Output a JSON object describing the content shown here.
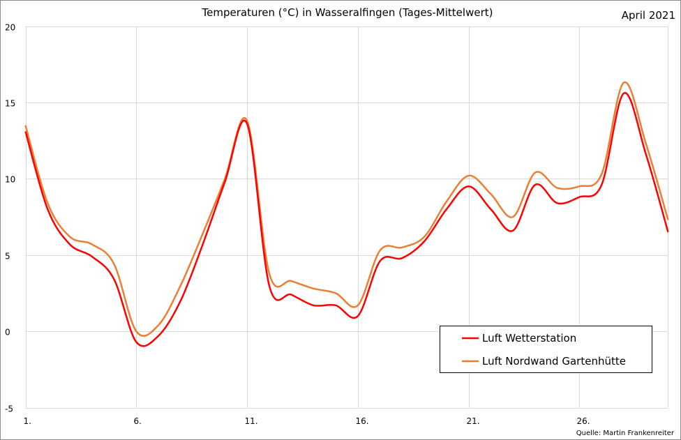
{
  "chart_data": {
    "type": "line",
    "title": "Temperaturen (°C) in Wasseralfingen (Tages-Mittelwert)",
    "subtitle": "April 2021",
    "source": "Quelle: Martin Frankenreiter",
    "xlabel": "",
    "ylabel": "",
    "x": [
      1,
      2,
      3,
      4,
      5,
      6,
      7,
      8,
      9,
      10,
      11,
      12,
      13,
      14,
      15,
      16,
      17,
      18,
      19,
      20,
      21,
      22,
      23,
      24,
      25,
      26,
      27,
      28,
      29,
      30
    ],
    "xlim": [
      1,
      30
    ],
    "xticks": [
      1,
      6,
      11,
      16,
      21,
      26
    ],
    "xtick_labels": [
      "1.",
      "6.",
      "11.",
      "16.",
      "21.",
      "26."
    ],
    "ylim": [
      -5,
      20
    ],
    "yticks": [
      -5,
      0,
      5,
      10,
      15,
      20
    ],
    "ytick_labels": [
      "-5",
      "0",
      "5",
      "10",
      "15",
      "20"
    ],
    "grid": true,
    "legend_position": "bottom-right",
    "series": [
      {
        "name": "Luft Wetterstation",
        "color": "#ff0000",
        "values": [
          13.1,
          8.0,
          5.7,
          4.9,
          3.4,
          -0.7,
          -0.3,
          2.0,
          5.7,
          9.8,
          13.6,
          3.0,
          2.4,
          1.7,
          1.7,
          1.0,
          4.6,
          4.8,
          5.9,
          8.0,
          9.5,
          8.0,
          6.6,
          9.6,
          8.4,
          8.8,
          9.6,
          15.6,
          11.6,
          6.5
        ]
      },
      {
        "name": "Luft Nordwand Gartenhütte",
        "color": "#ed7d31",
        "values": [
          13.5,
          8.4,
          6.2,
          5.7,
          4.4,
          0.0,
          0.4,
          3.0,
          6.4,
          10.0,
          13.8,
          3.8,
          3.3,
          2.8,
          2.5,
          1.7,
          5.3,
          5.5,
          6.2,
          8.5,
          10.2,
          9.0,
          7.5,
          10.4,
          9.4,
          9.5,
          10.3,
          16.3,
          12.3,
          7.3
        ]
      }
    ]
  }
}
